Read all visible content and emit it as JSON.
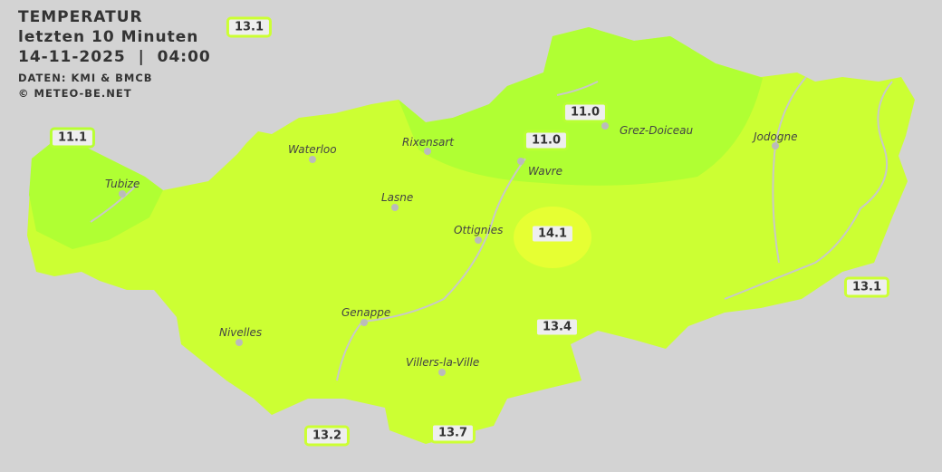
{
  "header": {
    "title": "TEMPERATUR",
    "subtitle": "letzten 10 Minuten",
    "datetime": "14-11-2025  |  04:00",
    "source": "DATEN: KMI & BMCB",
    "copyright": "© METEO-BE.NET"
  },
  "colors": {
    "background": "#d3d3d3",
    "zone_13": "#ccff33",
    "zone_11": "#b0ff33",
    "zone_14": "#e6ff33",
    "river": "#c8c8c8"
  },
  "cities": [
    {
      "name": "Waterloo"
    },
    {
      "name": "Rixensart"
    },
    {
      "name": "Wavre"
    },
    {
      "name": "Grez-Doiceau"
    },
    {
      "name": "Jodogne"
    },
    {
      "name": "Tubize"
    },
    {
      "name": "Lasne"
    },
    {
      "name": "Ottignies"
    },
    {
      "name": "Genappe"
    },
    {
      "name": "Nivelles"
    },
    {
      "name": "Villers-la-Ville"
    }
  ],
  "readings": [
    "13.1",
    "11.1",
    "11.0",
    "11.0",
    "14.1",
    "13.1",
    "13.4",
    "13.2",
    "13.7"
  ]
}
